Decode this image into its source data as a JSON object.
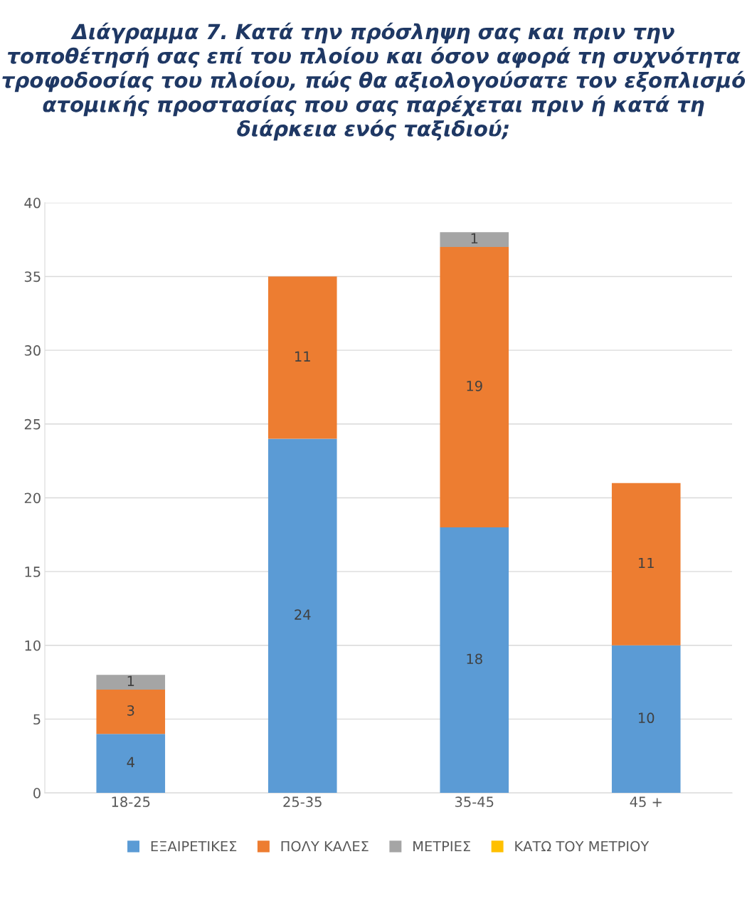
{
  "chart_data": {
    "type": "bar",
    "stacked": true,
    "title": "Διάγραμμα 7. Κατά την πρόσληψη σας και πριν την τοποθέτησή σας επί του πλοίου και όσον αφορά τη συχνότητα τροφοδοσίας του πλοίου, πώς θα αξιολογούσατε τον εξοπλισμό ατομικής προστασίας που σας παρέχεται πριν ή κατά τη διάρκεια ενός ταξιδιού;",
    "categories": [
      "18-25",
      "25-35",
      "35-45",
      "45 +"
    ],
    "series": [
      {
        "name": "ΕΞΑΙΡΕΤΙΚΕΣ",
        "color": "#5b9bd5",
        "values": [
          4,
          24,
          18,
          10
        ]
      },
      {
        "name": "ΠΟΛΥ ΚΑΛΕΣ",
        "color": "#ed7d31",
        "values": [
          3,
          11,
          19,
          11
        ]
      },
      {
        "name": "ΜΕΤΡΙΕΣ",
        "color": "#a5a5a5",
        "values": [
          1,
          null,
          1,
          null
        ]
      },
      {
        "name": "ΚΑΤΩ ΤΟΥ ΜΕΤΡΙΟΥ",
        "color": "#ffc000",
        "values": [
          null,
          null,
          null,
          null
        ]
      }
    ],
    "ylim": [
      0,
      40
    ],
    "yticks": [
      0,
      5,
      10,
      15,
      20,
      25,
      30,
      35,
      40
    ],
    "grid": "y",
    "legend": "bottom",
    "data_labels": true
  }
}
